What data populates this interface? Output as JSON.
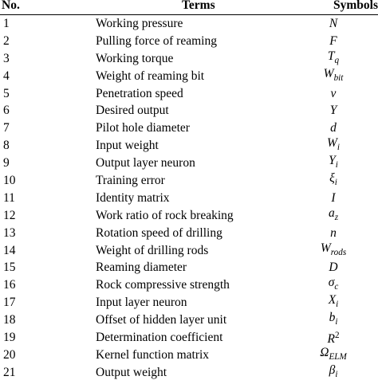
{
  "table": {
    "headers": {
      "no": "No.",
      "terms": "Terms",
      "symbols": "Symbols"
    },
    "rows": [
      {
        "no": "1",
        "term": "Working pressure",
        "symbol": "N"
      },
      {
        "no": "2",
        "term": "Pulling force of reaming",
        "symbol": "F"
      },
      {
        "no": "3",
        "term": "Working torque",
        "symbol": "T_q"
      },
      {
        "no": "4",
        "term": "Weight of reaming bit",
        "symbol": "W_bit"
      },
      {
        "no": "5",
        "term": "Penetration speed",
        "symbol": "v"
      },
      {
        "no": "6",
        "term": "Desired output",
        "symbol": "Y"
      },
      {
        "no": "7",
        "term": "Pilot hole diameter",
        "symbol": "d"
      },
      {
        "no": "8",
        "term": "Input weight",
        "symbol": "W_i"
      },
      {
        "no": "9",
        "term": "Output layer neuron",
        "symbol": "Y_i"
      },
      {
        "no": "10",
        "term": "Training error",
        "symbol": "ξ_i"
      },
      {
        "no": "11",
        "term": "Identity matrix",
        "symbol": "I"
      },
      {
        "no": "12",
        "term": "Work ratio of rock breaking",
        "symbol": "a_z"
      },
      {
        "no": "13",
        "term": "Rotation speed of drilling",
        "symbol": "n"
      },
      {
        "no": "14",
        "term": "Weight of drilling rods",
        "symbol": "W_rods"
      },
      {
        "no": "15",
        "term": "Reaming diameter",
        "symbol": "D"
      },
      {
        "no": "16",
        "term": "Rock compressive strength",
        "symbol": "σ_c"
      },
      {
        "no": "17",
        "term": "Input layer neuron",
        "symbol": "X_i"
      },
      {
        "no": "18",
        "term": "Offset of hidden layer unit",
        "symbol": "b_i"
      },
      {
        "no": "19",
        "term": "Determination coefficient",
        "symbol": "R^2"
      },
      {
        "no": "20",
        "term": "Kernel function matrix",
        "symbol": "Ω_ELM"
      },
      {
        "no": "21",
        "term": "Output weight",
        "symbol": "β_i"
      }
    ]
  }
}
